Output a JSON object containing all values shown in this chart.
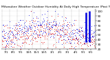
{
  "title_line1": "Milwaukee Weather Outdoor Humidity At Daily High Temperature (Past Year)",
  "ylim": [
    20,
    105
  ],
  "yticks": [
    20,
    30,
    40,
    50,
    60,
    70,
    80,
    90,
    100
  ],
  "n_points": 365,
  "bg_color": "#ffffff",
  "grid_color": "#aaaaaa",
  "blue_color": "#0000dd",
  "red_color": "#dd0000",
  "title_fontsize": 3.2,
  "tick_fontsize": 3.0,
  "seed": 42,
  "spike_indices": [
    330,
    342
  ],
  "spike_bottoms": [
    35,
    35
  ],
  "spike_tops": [
    98,
    100
  ],
  "month_days": [
    0,
    31,
    59,
    90,
    120,
    151,
    181,
    212,
    243,
    273,
    304,
    334,
    365
  ],
  "month_labels": [
    "7/1",
    "8/1",
    "9/1",
    "10/1",
    "11/1",
    "12/1",
    "1/1",
    "2/1",
    "3/1",
    "4/1",
    "5/1",
    "6/1"
  ]
}
